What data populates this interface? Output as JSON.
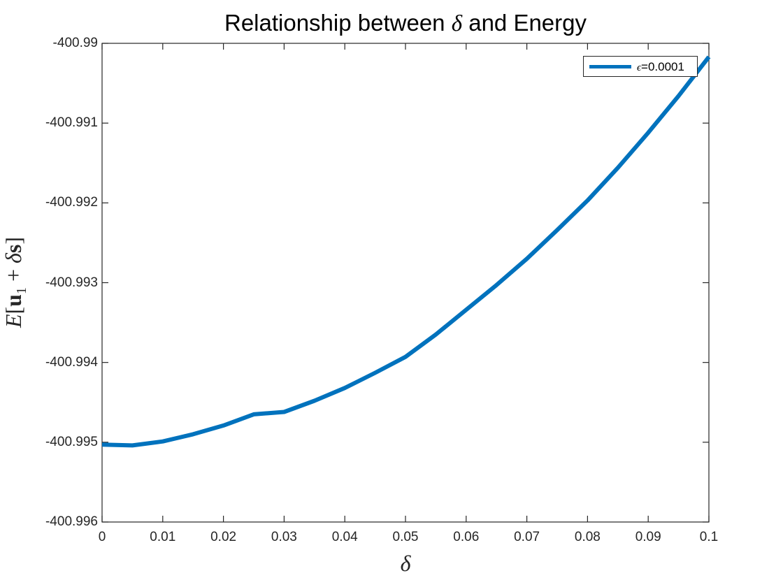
{
  "chart_data": {
    "type": "line",
    "title": "Relationship between δ and Energy",
    "title_parts": {
      "prefix": "Relationship between ",
      "symbol": "δ",
      "suffix": " and Energy"
    },
    "xlabel": "δ",
    "ylabel": "E[u₁ + δs]",
    "ylabel_parts": {
      "E": "E",
      "open": "[",
      "u": "u",
      "sub": "1",
      "plus": " + ",
      "delta": "δ",
      "s": "s",
      "close": "]"
    },
    "xlim": [
      0,
      0.1
    ],
    "ylim": [
      -400.996,
      -400.99
    ],
    "x_ticks": [
      "0",
      "0.01",
      "0.02",
      "0.03",
      "0.04",
      "0.05",
      "0.06",
      "0.07",
      "0.08",
      "0.09",
      "0.1"
    ],
    "y_ticks": [
      "-400.99",
      "-400.991",
      "-400.992",
      "-400.993",
      "-400.994",
      "-400.995",
      "-400.996"
    ],
    "grid": false,
    "legend_position": "northeast",
    "series": [
      {
        "name": "ϵ=0.0001",
        "color": "#0072bd",
        "x": [
          0,
          0.005,
          0.01,
          0.015,
          0.02,
          0.025,
          0.03,
          0.035,
          0.04,
          0.045,
          0.05,
          0.055,
          0.06,
          0.065,
          0.07,
          0.075,
          0.08,
          0.085,
          0.09,
          0.095,
          0.1
        ],
        "values": [
          -400.99503,
          -400.99504,
          -400.99499,
          -400.9949,
          -400.99479,
          -400.99465,
          -400.99462,
          -400.99448,
          -400.99432,
          -400.99413,
          -400.99393,
          -400.99365,
          -400.99334,
          -400.99303,
          -400.9927,
          -400.99234,
          -400.99197,
          -400.99156,
          -400.99112,
          -400.99066,
          -400.99017
        ]
      }
    ]
  },
  "legend": {
    "eps_symbol": "ϵ",
    "eps_value": "=0.0001"
  }
}
